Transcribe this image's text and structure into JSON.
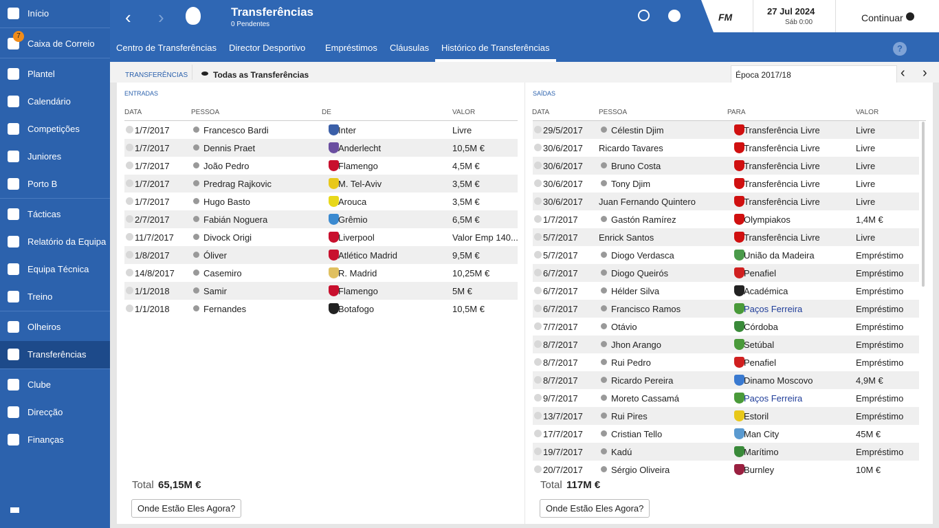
{
  "sidebar": {
    "items": [
      "Início",
      "Caixa de Correio",
      "Plantel",
      "Calendário",
      "Competições",
      "Juniores",
      "Porto B",
      "Tácticas",
      "Relatório da Equipa",
      "Equipa Técnica",
      "Treino",
      "Olheiros",
      "Transferências",
      "Clube",
      "Direcção",
      "Finanças"
    ],
    "mail_badge": "7"
  },
  "header": {
    "title": "Transferências",
    "subtitle": "0 Pendentes",
    "logo": "FM",
    "date": "27 Jul 2024",
    "time": "Sáb 0:00",
    "continue": "Continuar"
  },
  "tabs": [
    "Centro de Transferências",
    "Director Desportivo",
    "Empréstimos",
    "Cláusulas",
    "Histórico de Transferências"
  ],
  "toolbar": {
    "section": "TRANSFERÊNCIAS",
    "filter": "Todas as Transferências",
    "season": "Época 2017/18"
  },
  "incoming": {
    "title": "ENTRADAS",
    "columns": [
      "DATA",
      "PESSOA",
      "DE",
      "VALOR"
    ],
    "rows": [
      [
        "1/7/2017",
        "Francesco Bardi",
        "Inter",
        "Livre"
      ],
      [
        "1/7/2017",
        "Dennis Praet",
        "Anderlecht",
        "10,5M €"
      ],
      [
        "1/7/2017",
        "João Pedro",
        "Flamengo",
        "4,5M €"
      ],
      [
        "1/7/2017",
        "Predrag Rajkovic",
        "M. Tel-Aviv",
        "3,5M €"
      ],
      [
        "1/7/2017",
        "Hugo Basto",
        "Arouca",
        "3,5M €"
      ],
      [
        "2/7/2017",
        "Fabián Noguera",
        "Grêmio",
        "6,5M €"
      ],
      [
        "11/7/2017",
        "Divock Origi",
        "Liverpool",
        "Valor Emp 140..."
      ],
      [
        "1/8/2017",
        "Óliver",
        "Atlético Madrid",
        "9,5M €"
      ],
      [
        "14/8/2017",
        "Casemiro",
        "R. Madrid",
        "10,25M €"
      ],
      [
        "1/1/2018",
        "Samir",
        "Flamengo",
        "5M €"
      ],
      [
        "1/1/2018",
        "Fernandes",
        "Botafogo",
        "10,5M €"
      ]
    ],
    "total_label": "Total",
    "total": "65,15M €",
    "button": "Onde Estão Eles Agora?"
  },
  "outgoing": {
    "title": "SAÍDAS",
    "columns": [
      "DATA",
      "PESSOA",
      "PARA",
      "VALOR"
    ],
    "rows": [
      [
        "29/5/2017",
        "Célestin Djim",
        "Transferência Livre",
        "Livre"
      ],
      [
        "30/6/2017",
        "Ricardo Tavares",
        "Transferência Livre",
        "Livre"
      ],
      [
        "30/6/2017",
        "Bruno Costa",
        "Transferência Livre",
        "Livre"
      ],
      [
        "30/6/2017",
        "Tony Djim",
        "Transferência Livre",
        "Livre"
      ],
      [
        "30/6/2017",
        "Juan Fernando Quintero",
        "Transferência Livre",
        "Livre"
      ],
      [
        "1/7/2017",
        "Gastón Ramírez",
        "Olympiakos",
        "1,4M €"
      ],
      [
        "5/7/2017",
        "Enrick Santos",
        "Transferência Livre",
        "Livre"
      ],
      [
        "5/7/2017",
        "Diogo Verdasca",
        "União da Madeira",
        "Empréstimo"
      ],
      [
        "6/7/2017",
        "Diogo Queirós",
        "Penafiel",
        "Empréstimo"
      ],
      [
        "6/7/2017",
        "Hélder Silva",
        "Académica",
        "Empréstimo"
      ],
      [
        "6/7/2017",
        "Francisco Ramos",
        "Paços Ferreira",
        "Empréstimo"
      ],
      [
        "7/7/2017",
        "Otávio",
        "Córdoba",
        "Empréstimo"
      ],
      [
        "8/7/2017",
        "Jhon Arango",
        "Setúbal",
        "Empréstimo"
      ],
      [
        "8/7/2017",
        "Rui Pedro",
        "Penafiel",
        "Empréstimo"
      ],
      [
        "8/7/2017",
        "Ricardo Pereira",
        "Dinamo Moscovo",
        "4,9M €"
      ],
      [
        "9/7/2017",
        "Moreto Cassamá",
        "Paços Ferreira",
        "Empréstimo"
      ],
      [
        "13/7/2017",
        "Rui Pires",
        "Estoril",
        "Empréstimo"
      ],
      [
        "17/7/2017",
        "Cristian Tello",
        "Man City",
        "45M €"
      ],
      [
        "19/7/2017",
        "Kadú",
        "Marítimo",
        "Empréstimo"
      ],
      [
        "20/7/2017",
        "Sérgio Oliveira",
        "Burnley",
        "10M €"
      ]
    ],
    "total_label": "Total",
    "total": "117M €",
    "button": "Onde Estão Eles Agora?"
  }
}
